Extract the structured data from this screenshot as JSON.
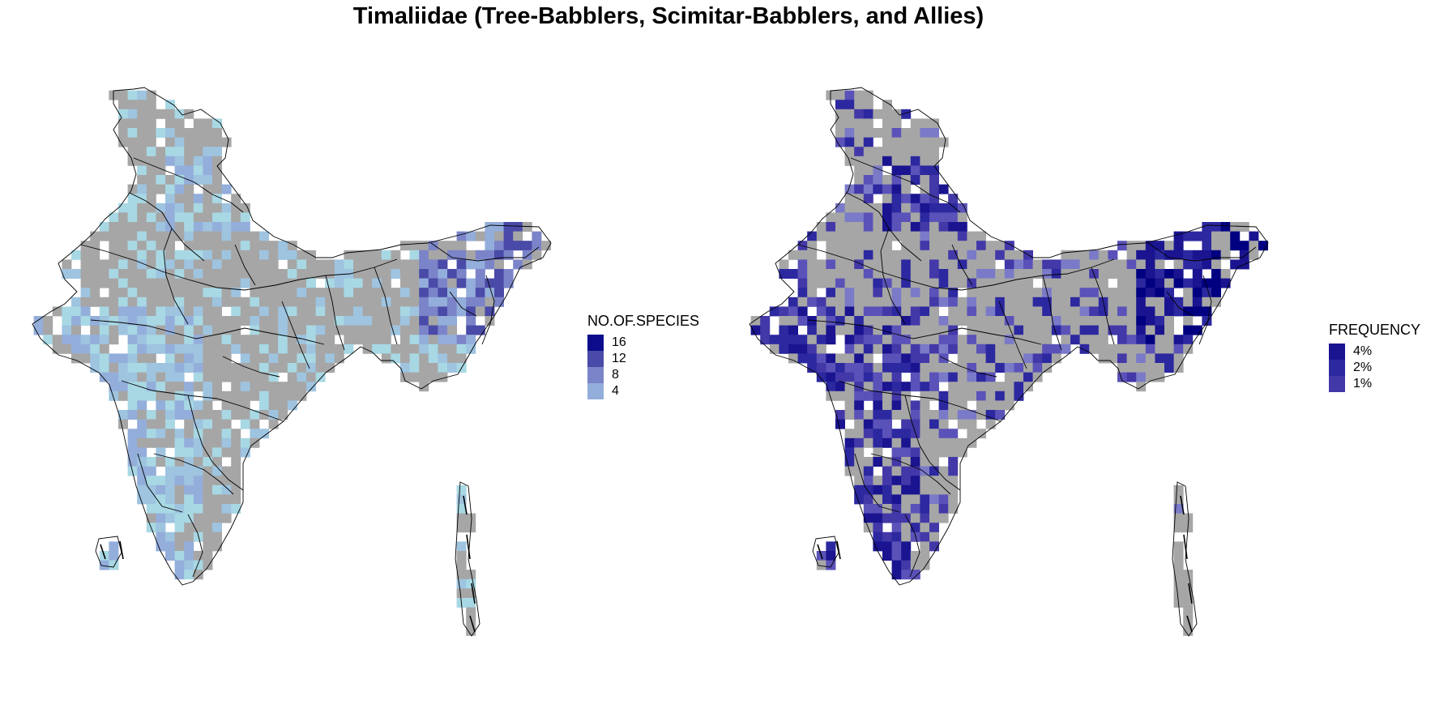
{
  "title": "Timaliidae (Tree-Babblers, Scimitar-Babblers, and Allies)",
  "colors": {
    "background": "#ffffff",
    "no_data_cell": "#a6a6a6",
    "outline": "#000000"
  },
  "panels": [
    {
      "id": "left",
      "legend": {
        "title": "NO.OF.SPECIES",
        "items": [
          {
            "label": "16",
            "color": "#0c0c8c"
          },
          {
            "label": "12",
            "color": "#4a4aa8"
          },
          {
            "label": "8",
            "color": "#7b84c8"
          },
          {
            "label": "4",
            "color": "#94aedb"
          }
        ]
      },
      "cell_palette": [
        "#a8d8e4",
        "#9ec4e0",
        "#94aedb",
        "#7b84c8",
        "#4a4aa8",
        "#0c0c8c"
      ]
    },
    {
      "id": "right",
      "legend": {
        "title": "FREQUENCY",
        "items": [
          {
            "label": "4%",
            "color": "#1a1490"
          },
          {
            "label": "2%",
            "color": "#2c28a0"
          },
          {
            "label": "1%",
            "color": "#4338a8"
          }
        ]
      },
      "cell_palette": [
        "#7a7ac8",
        "#5a52b8",
        "#4338a8",
        "#2c28a0",
        "#1a1490",
        "#000080"
      ]
    }
  ]
}
